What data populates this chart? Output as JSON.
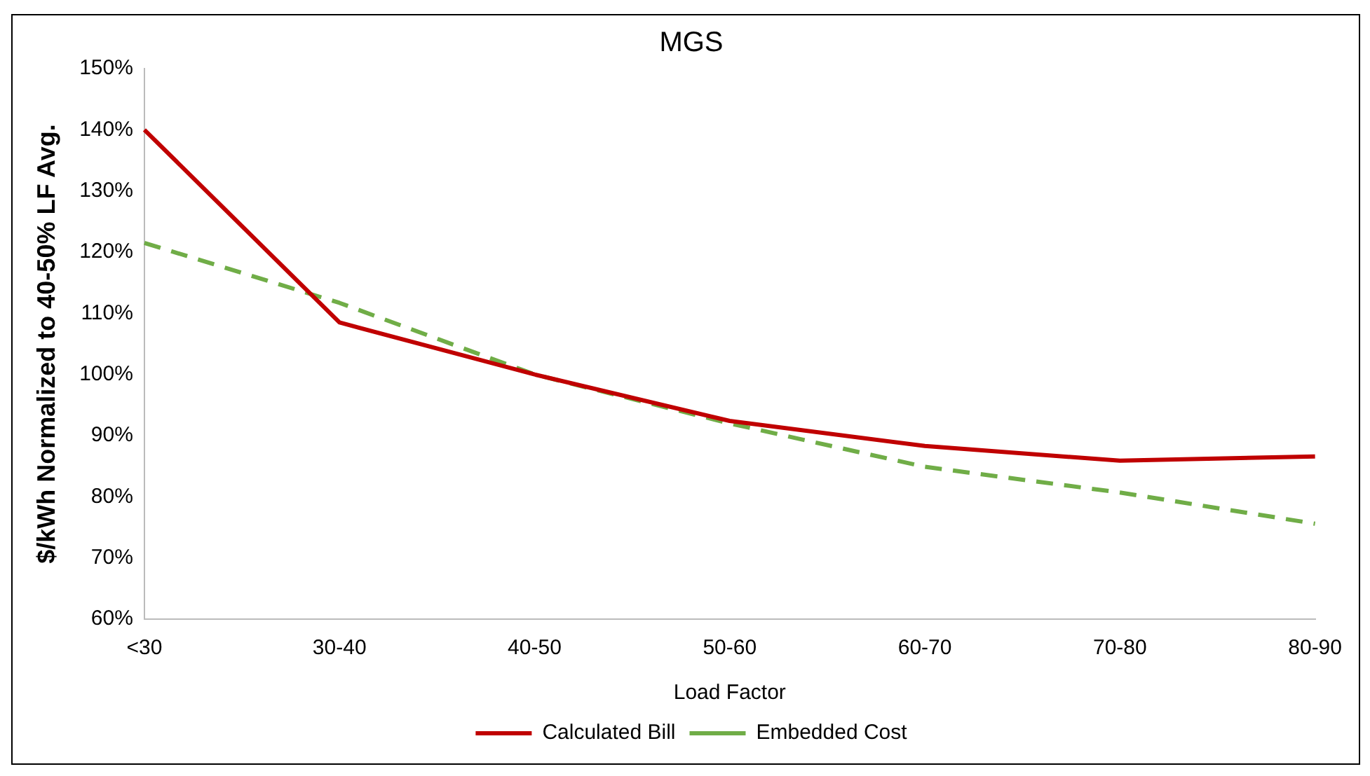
{
  "chart_data": {
    "type": "line",
    "title": "MGS",
    "xlabel": "Load Factor",
    "ylabel": "$/kWh Normalized to 40-50% LF Avg.",
    "categories": [
      "<30",
      "30-40",
      "40-50",
      "50-60",
      "60-70",
      "70-80",
      "80-90"
    ],
    "series": [
      {
        "name": "Calculated Bill",
        "color": "#c00000",
        "line_style": "solid",
        "values": [
          140,
          108.5,
          100,
          92.4,
          88.3,
          85.9,
          86.6
        ]
      },
      {
        "name": "Embedded Cost",
        "color": "#70ad47",
        "line_style": "dashed",
        "values": [
          121.5,
          111.7,
          100,
          92,
          84.9,
          80.7,
          75.6
        ]
      }
    ],
    "ylim": [
      60,
      150
    ],
    "yticks": [
      {
        "value": 60,
        "label": "60%"
      },
      {
        "value": 70,
        "label": "70%"
      },
      {
        "value": 80,
        "label": "80%"
      },
      {
        "value": 90,
        "label": "90%"
      },
      {
        "value": 100,
        "label": "100%"
      },
      {
        "value": 110,
        "label": "110%"
      },
      {
        "value": 120,
        "label": "120%"
      },
      {
        "value": 130,
        "label": "130%"
      },
      {
        "value": 140,
        "label": "140%"
      },
      {
        "value": 150,
        "label": "150%"
      }
    ],
    "grid": false,
    "legend": "bottom",
    "marker": "none"
  }
}
